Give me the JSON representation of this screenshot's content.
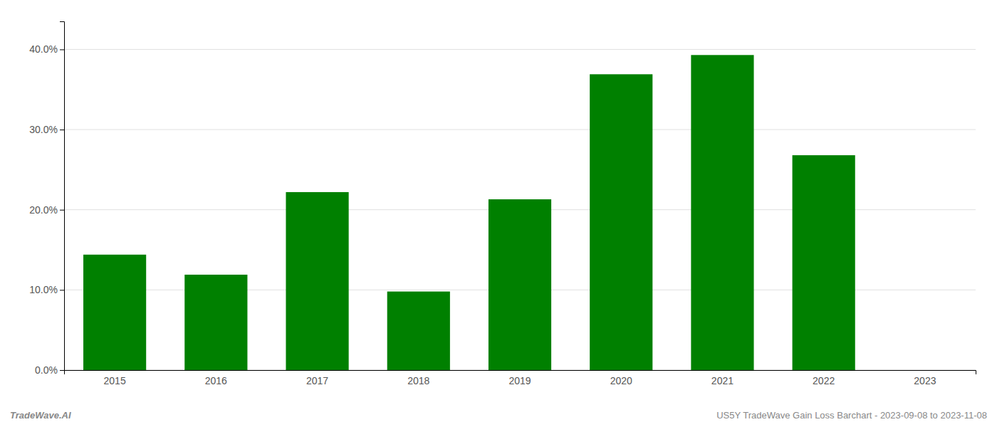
{
  "chart_data": {
    "type": "bar",
    "title": "US5Y TradeWave Gain Loss Barchart - 2023-09-08 to 2023-11-08",
    "annotations": [
      "TradeWave.AI"
    ],
    "categories": [
      "2015",
      "2016",
      "2017",
      "2018",
      "2019",
      "2020",
      "2021",
      "2022",
      "2023"
    ],
    "values": [
      0.144,
      0.119,
      0.222,
      0.098,
      0.213,
      0.369,
      0.393,
      0.268,
      null
    ],
    "color": "#008000",
    "ylim": [
      0,
      0.435
    ],
    "yticks": [
      {
        "value": 0.0,
        "label": "0.0%"
      },
      {
        "value": 0.1,
        "label": "10.0%"
      },
      {
        "value": 0.2,
        "label": "20.0%"
      },
      {
        "value": 0.3,
        "label": "30.0%"
      },
      {
        "value": 0.4,
        "label": "40.0%"
      }
    ],
    "grid": true
  }
}
